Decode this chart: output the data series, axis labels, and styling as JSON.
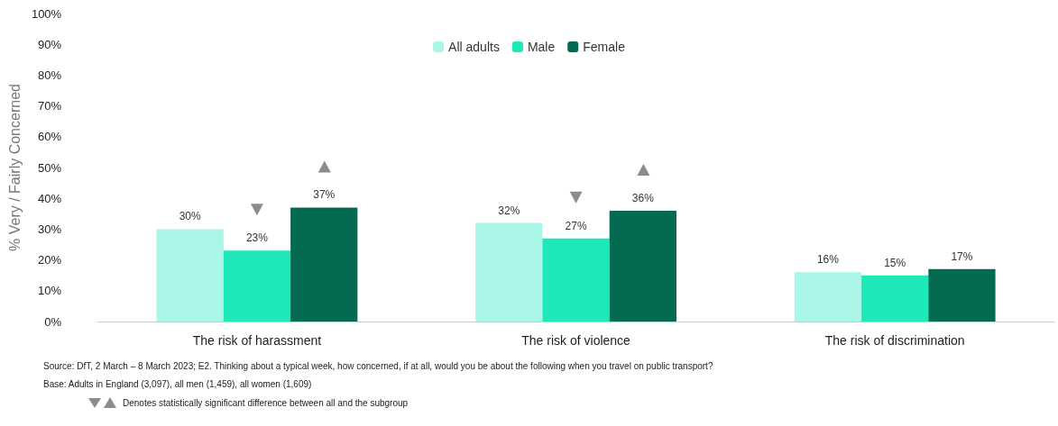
{
  "chart_data": {
    "type": "bar",
    "ylabel": "% Very / Fairly Concerned",
    "categories": [
      "The risk of harassment",
      "The risk of violence",
      "The risk of discrimination"
    ],
    "series": [
      {
        "name": "All adults",
        "color": "#aaf6e8",
        "values": [
          30,
          32,
          16
        ],
        "value_labels": [
          "30%",
          "32%",
          "16%"
        ]
      },
      {
        "name": "Male",
        "color": "#1ee8b8",
        "values": [
          23,
          27,
          15
        ],
        "value_labels": [
          "23%",
          "27%",
          "15%"
        ]
      },
      {
        "name": "Female",
        "color": "#046a52",
        "values": [
          37,
          36,
          17
        ],
        "value_labels": [
          "37%",
          "36%",
          "17%"
        ]
      }
    ],
    "ylim": [
      0,
      100
    ],
    "yticks": [
      {
        "value": 0,
        "label": "0%"
      },
      {
        "value": 10,
        "label": "10%"
      },
      {
        "value": 20,
        "label": "20%"
      },
      {
        "value": 30,
        "label": "30%"
      },
      {
        "value": 40,
        "label": "40%"
      },
      {
        "value": 50,
        "label": "50%"
      },
      {
        "value": 60,
        "label": "60%"
      },
      {
        "value": 70,
        "label": "70%"
      },
      {
        "value": 80,
        "label": "80%"
      },
      {
        "value": 90,
        "label": "90%"
      },
      {
        "value": 100,
        "label": "100%"
      }
    ],
    "grid": false,
    "legend": "top",
    "annotations": [
      "Source: DfT, 2 March – 8 March 2023; E2. Thinking about a typical week, how concerned, if at all, would you be about the following when you travel on public transport?",
      "Base: Adults in England (3,097), all men (1,459), all women (1,609)",
      "Denotes statistically significant difference between all and the subgroup"
    ]
  }
}
